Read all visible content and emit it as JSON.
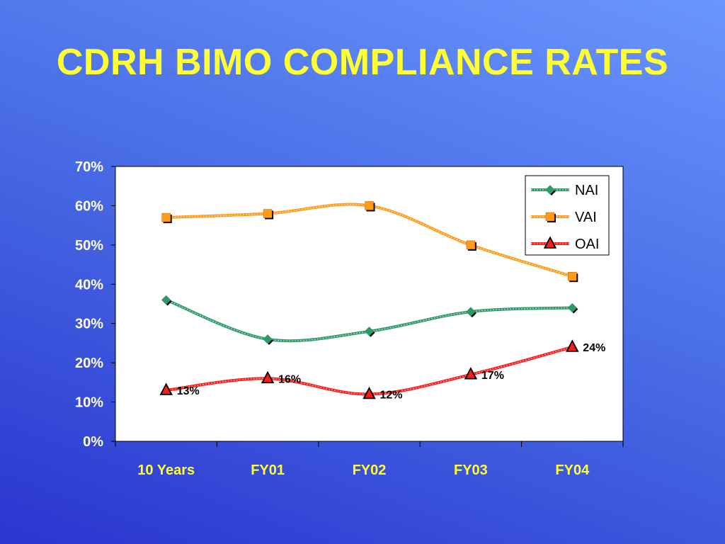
{
  "slide": {
    "title": "CDRH BIMO COMPLIANCE RATES"
  },
  "colors": {
    "background_top": "#6a96ff",
    "background_bottom": "#2a35cf",
    "title": "#ffff33",
    "axis_text": "#ffffff",
    "category_text": "#ffff33",
    "nai": "#2e9a6a",
    "vai": "#ff9a1a",
    "oai": "#ff1a1a"
  },
  "chart_data": {
    "type": "line",
    "title": "",
    "xlabel": "",
    "ylabel": "",
    "categories": [
      "10 Years",
      "FY01",
      "FY02",
      "FY03",
      "FY04"
    ],
    "ylim": [
      0,
      70
    ],
    "yticks": [
      0,
      10,
      20,
      30,
      40,
      50,
      60,
      70
    ],
    "ytick_labels": [
      "0%",
      "10%",
      "20%",
      "30%",
      "40%",
      "50%",
      "60%",
      "70%"
    ],
    "grid": false,
    "legend_position": "top-right",
    "series": [
      {
        "name": "NAI",
        "values": [
          36,
          26,
          28,
          33,
          34
        ],
        "marker": "diamond",
        "color": "#2e9a6a",
        "data_labels": []
      },
      {
        "name": "VAI",
        "values": [
          57,
          58,
          60,
          50,
          42
        ],
        "marker": "square",
        "color": "#ff9a1a",
        "data_labels": []
      },
      {
        "name": "OAI",
        "values": [
          13,
          16,
          12,
          17,
          24
        ],
        "marker": "triangle",
        "color": "#ff1a1a",
        "data_labels": [
          "13%",
          "16%",
          "12%",
          "17%",
          "24%"
        ]
      }
    ]
  }
}
